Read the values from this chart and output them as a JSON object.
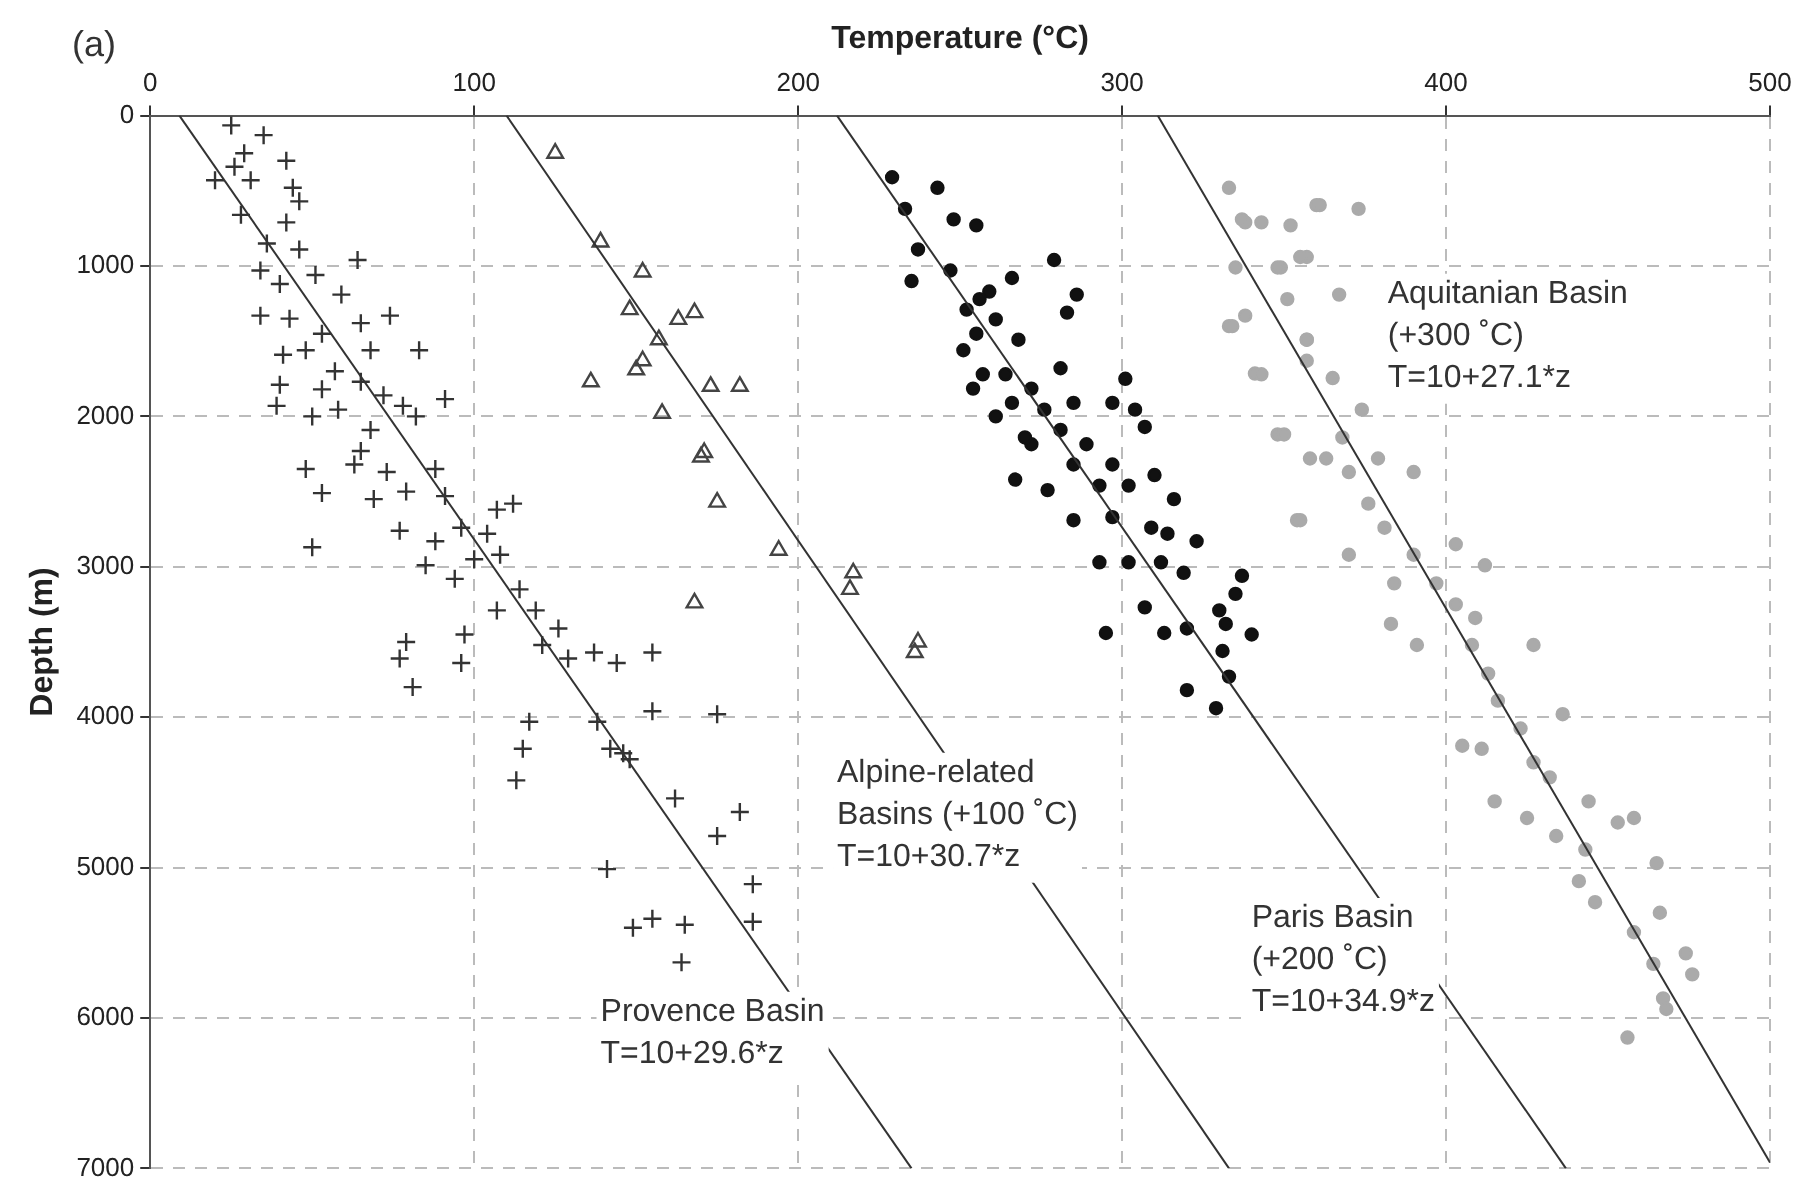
{
  "chart_data": {
    "type": "scatter",
    "xlabel": "Temperature (°C)",
    "ylabel": "Depth (m)",
    "xlim": [
      0,
      500
    ],
    "xticks": [
      0,
      100,
      200,
      300,
      400,
      500
    ],
    "ylim": [
      7000,
      0
    ],
    "yticks": [
      0,
      1000,
      2000,
      3000,
      4000,
      5000,
      6000,
      7000
    ],
    "grid": true,
    "annotations": [
      "(a)",
      "Provence Basin\nT=10+29.6*z",
      "Alpine-related\nBasins (+100 ˚C)\nT=10+30.7*z",
      "Paris Basin\n(+200 ˚C)\nT=10+34.9*z",
      "Aquitanian Basin\n(+300 ˚C)\nT=10+27.1*z"
    ],
    "series": [
      {
        "type": "scatter",
        "marker": "cross",
        "color": "#333333",
        "x": [
          25,
          35,
          29,
          20,
          26,
          42,
          31,
          44,
          28,
          46,
          36,
          42,
          34,
          46,
          64,
          40,
          51,
          59,
          34,
          43,
          53,
          65,
          74,
          41,
          48,
          68,
          83,
          57,
          53,
          40,
          39,
          65,
          72,
          91,
          50,
          58,
          82,
          78,
          68,
          65,
          48,
          63,
          73,
          88,
          53,
          69,
          79,
          91,
          112,
          107,
          50,
          77,
          96,
          88,
          104,
          85,
          94,
          100,
          108,
          114,
          107,
          119,
          79,
          77,
          81,
          97,
          96,
          126,
          121,
          129,
          137,
          144,
          117,
          115,
          113,
          138,
          142,
          162,
          182,
          175,
          141,
          186,
          186,
          149,
          155,
          165,
          164,
          155,
          155,
          175,
          148,
          146
        ],
        "values": [
          65,
          130,
          250,
          430,
          340,
          300,
          430,
          480,
          660,
          570,
          850,
          710,
          1030,
          890,
          960,
          1120,
          1060,
          1190,
          1330,
          1350,
          1450,
          1380,
          1330,
          1590,
          1560,
          1560,
          1560,
          1700,
          1820,
          1790,
          1930,
          1770,
          1860,
          1885,
          2000,
          1955,
          2000,
          1930,
          2090,
          2230,
          2350,
          2320,
          2370,
          2350,
          2510,
          2550,
          2500,
          2530,
          2580,
          2620,
          2870,
          2760,
          2740,
          2830,
          2780,
          2990,
          3080,
          2950,
          2920,
          3150,
          3290,
          3290,
          3500,
          3610,
          3800,
          3450,
          3640,
          3410,
          3520,
          3610,
          3570,
          3640,
          4030,
          4210,
          4420,
          4030,
          4210,
          4540,
          4630,
          4790,
          5010,
          5110,
          5360,
          5400,
          5340,
          5380,
          5630,
          3570,
          3960,
          3980,
          4280,
          4240
        ]
      },
      {
        "type": "scatter",
        "marker": "triangle",
        "color": "#444444",
        "x": [
          125,
          139,
          152,
          148,
          163,
          168,
          157,
          152,
          150,
          136,
          173,
          182,
          158,
          171,
          170,
          175,
          194,
          168,
          217,
          216,
          237,
          236
        ],
        "values": [
          250,
          840,
          1040,
          1290,
          1355,
          1310,
          1490,
          1630,
          1690,
          1770,
          1800,
          1800,
          1980,
          2240,
          2270,
          2570,
          2890,
          3240,
          3040,
          3150,
          3500,
          3570
        ]
      },
      {
        "type": "scatter",
        "marker": "circle",
        "color": "#111111",
        "x": [
          229,
          233,
          243,
          248,
          255,
          237,
          247,
          266,
          279,
          286,
          283,
          252,
          255,
          261,
          251,
          268,
          254,
          264,
          272,
          281,
          261,
          276,
          266,
          301,
          304,
          307,
          297,
          281,
          289,
          272,
          267,
          285,
          297,
          302,
          310,
          316,
          277,
          285,
          297,
          309,
          314,
          323,
          293,
          302,
          312,
          319,
          337,
          335,
          307,
          330,
          295,
          313,
          320,
          332,
          340,
          331,
          333,
          320,
          329,
          259,
          257,
          285,
          270,
          293,
          235,
          256
        ],
        "values": [
          410,
          620,
          480,
          690,
          730,
          890,
          1030,
          1080,
          960,
          1190,
          1310,
          1290,
          1450,
          1355,
          1560,
          1490,
          1815,
          1720,
          1815,
          1680,
          2000,
          1955,
          1910,
          1750,
          1955,
          2070,
          1910,
          2090,
          2185,
          2185,
          2420,
          2320,
          2320,
          2460,
          2390,
          2550,
          2490,
          2690,
          2670,
          2740,
          2780,
          2830,
          2970,
          2970,
          2970,
          3040,
          3060,
          3180,
          3270,
          3290,
          3440,
          3440,
          3410,
          3380,
          3450,
          3560,
          3730,
          3820,
          3940,
          1170,
          1720,
          1910,
          2140,
          2460,
          1100,
          1220
        ]
      },
      {
        "type": "scatter",
        "marker": "circle",
        "color": "#aaaaaa",
        "x": [
          333,
          338,
          343,
          352,
          360,
          335,
          349,
          357,
          333,
          338,
          351,
          357,
          341,
          348,
          358,
          354,
          337,
          361,
          373,
          355,
          348,
          334,
          357,
          367,
          343,
          365,
          357,
          374,
          350,
          368,
          363,
          379,
          370,
          390,
          355,
          376,
          381,
          370,
          390,
          384,
          397,
          403,
          412,
          383,
          403,
          409,
          391,
          408,
          413,
          416,
          427,
          436,
          405,
          411,
          423,
          427,
          415,
          425,
          434,
          443,
          432,
          444,
          453,
          458,
          441,
          446,
          458,
          465,
          466,
          464,
          474,
          476,
          467,
          468,
          456
        ],
        "values": [
          480,
          710,
          710,
          730,
          595,
          1010,
          1010,
          940,
          1400,
          1330,
          1220,
          1490,
          1715,
          2120,
          2280,
          2690,
          690,
          595,
          620,
          940,
          1010,
          1400,
          1490,
          1190,
          1720,
          1745,
          1630,
          1955,
          2120,
          2140,
          2280,
          2280,
          2370,
          2370,
          2690,
          2580,
          2740,
          2920,
          2920,
          3110,
          3110,
          2850,
          2990,
          3380,
          3250,
          3340,
          3520,
          3520,
          3710,
          3890,
          3520,
          3980,
          4190,
          4210,
          4075,
          4300,
          4560,
          4670,
          4790,
          4880,
          4400,
          4560,
          4700,
          4670,
          5090,
          5230,
          5430,
          4970,
          5300,
          5640,
          5570,
          5710,
          5870,
          5940,
          6130
        ]
      },
      {
        "type": "line",
        "marker": "none",
        "color": "#333333",
        "x": [
          9,
          235
        ],
        "values": [
          0,
          7000
        ]
      },
      {
        "type": "line",
        "marker": "none",
        "color": "#333333",
        "x": [
          110,
          333
        ],
        "values": [
          0,
          7000
        ]
      },
      {
        "type": "line",
        "marker": "none",
        "color": "#333333",
        "x": [
          212,
          437
        ],
        "values": [
          0,
          7000
        ]
      },
      {
        "type": "line",
        "marker": "none",
        "color": "#333333",
        "x": [
          311,
          500
        ],
        "values": [
          0,
          6960
        ]
      }
    ]
  }
}
